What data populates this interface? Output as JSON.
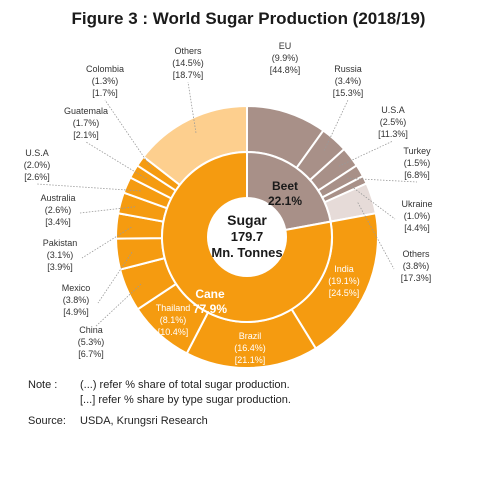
{
  "title": "Figure 3 : World Sugar Production (2018/19)",
  "chart_data": {
    "type": "pie",
    "title": "Figure 3 : World Sugar Production (2018/19)",
    "center": {
      "line1": "Sugar",
      "line2": "179.7",
      "line3": "Mn. Tonnes"
    },
    "inner": [
      {
        "name": "Beet",
        "pct": "22.1%",
        "value": 22.1,
        "color": "#a89088",
        "text_color": "#1a1a1a"
      },
      {
        "name": "Cane",
        "pct": "77.9%",
        "value": 77.9,
        "color": "#f59b10",
        "text_color": "#ffffff"
      }
    ],
    "outer": [
      {
        "name": "EU",
        "share_total": "(9.9%)",
        "share_type": "[44.8%]",
        "value": 9.9,
        "group": "Beet"
      },
      {
        "name": "Russia",
        "share_total": "(3.4%)",
        "share_type": "[15.3%]",
        "value": 3.4,
        "group": "Beet"
      },
      {
        "name": "U.S.A",
        "share_total": "(2.5%)",
        "share_type": "[11.3%]",
        "value": 2.5,
        "group": "Beet"
      },
      {
        "name": "Turkey",
        "share_total": "(1.5%)",
        "share_type": "[6.8%]",
        "value": 1.5,
        "group": "Beet"
      },
      {
        "name": "Ukraine",
        "share_total": "(1.0%)",
        "share_type": "[4.4%]",
        "value": 1.0,
        "group": "Beet"
      },
      {
        "name": "Others",
        "share_total": "(3.8%)",
        "share_type": "[17.3%]",
        "value": 3.8,
        "group": "Beet"
      },
      {
        "name": "India",
        "share_total": "(19.1%)",
        "share_type": "[24.5%]",
        "value": 19.1,
        "group": "Cane"
      },
      {
        "name": "Brazil",
        "share_total": "(16.4%)",
        "share_type": "[21.1%]",
        "value": 16.4,
        "group": "Cane"
      },
      {
        "name": "Thailand",
        "share_total": "(8.1%)",
        "share_type": "[10.4%]",
        "value": 8.1,
        "group": "Cane"
      },
      {
        "name": "China",
        "share_total": "(5.3%)",
        "share_type": "[6.7%]",
        "value": 5.3,
        "group": "Cane"
      },
      {
        "name": "Mexico",
        "share_total": "(3.8%)",
        "share_type": "[4.9%]",
        "value": 3.8,
        "group": "Cane"
      },
      {
        "name": "Pakistan",
        "share_total": "(3.1%)",
        "share_type": "[3.9%]",
        "value": 3.1,
        "group": "Cane"
      },
      {
        "name": "Australia",
        "share_total": "(2.6%)",
        "share_type": "[3.4%]",
        "value": 2.6,
        "group": "Cane"
      },
      {
        "name": "U.S.A",
        "share_total": "(2.0%)",
        "share_type": "[2.6%]",
        "value": 2.0,
        "group": "Cane"
      },
      {
        "name": "Guatemala",
        "share_total": "(1.7%)",
        "share_type": "[2.1%]",
        "value": 1.7,
        "group": "Cane"
      },
      {
        "name": "Colombia",
        "share_total": "(1.3%)",
        "share_type": "[1.7%]",
        "value": 1.3,
        "group": "Cane"
      },
      {
        "name": "Others",
        "share_total": "(14.5%)",
        "share_type": "[18.7%]",
        "value": 14.5,
        "group": "Cane"
      }
    ],
    "colors": {
      "beet_dark": "#a89088",
      "beet_light": "#e6dbd8",
      "cane": "#f59b10",
      "cane_light": "#fdcf8e",
      "separator": "#ffffff",
      "leader": "#999999"
    }
  },
  "notes": {
    "label": "Note :",
    "line1": "(...) refer % share of total sugar production.",
    "line2": "[...] refer % share by type sugar production.",
    "source_label": "Source:",
    "source": "USDA, Krungsri Research"
  }
}
